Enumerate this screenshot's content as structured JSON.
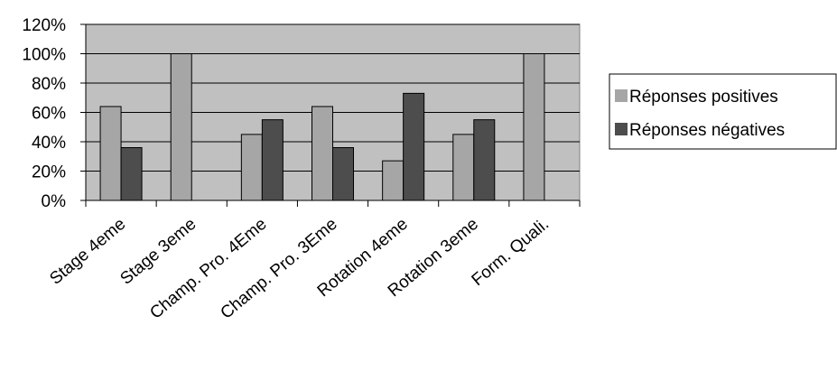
{
  "chart_data": {
    "type": "bar",
    "categories": [
      "Stage 4eme",
      "Stage 3eme",
      "Champ. Pro. 4Eme",
      "Champ. Pro. 3Eme",
      "Rotation 4eme",
      "Rotation 3eme",
      "Form. Quali."
    ],
    "series": [
      {
        "name": "Réponses positives",
        "color": "#a6a6a6",
        "values": [
          64,
          100,
          45,
          64,
          27,
          45,
          100
        ]
      },
      {
        "name": "Réponses négatives",
        "color": "#4d4d4d",
        "values": [
          36,
          0,
          55,
          36,
          73,
          55,
          0
        ]
      }
    ],
    "ylim": [
      0,
      120
    ],
    "yticks": [
      {
        "value": 0,
        "label": "0%"
      },
      {
        "value": 20,
        "label": "20%"
      },
      {
        "value": 40,
        "label": "40%"
      },
      {
        "value": 60,
        "label": "60%"
      },
      {
        "value": 80,
        "label": "80%"
      },
      {
        "value": 100,
        "label": "100%"
      },
      {
        "value": 120,
        "label": "120%"
      }
    ],
    "grid": true,
    "plot_background": "#c0c0c0",
    "legend": "right"
  }
}
